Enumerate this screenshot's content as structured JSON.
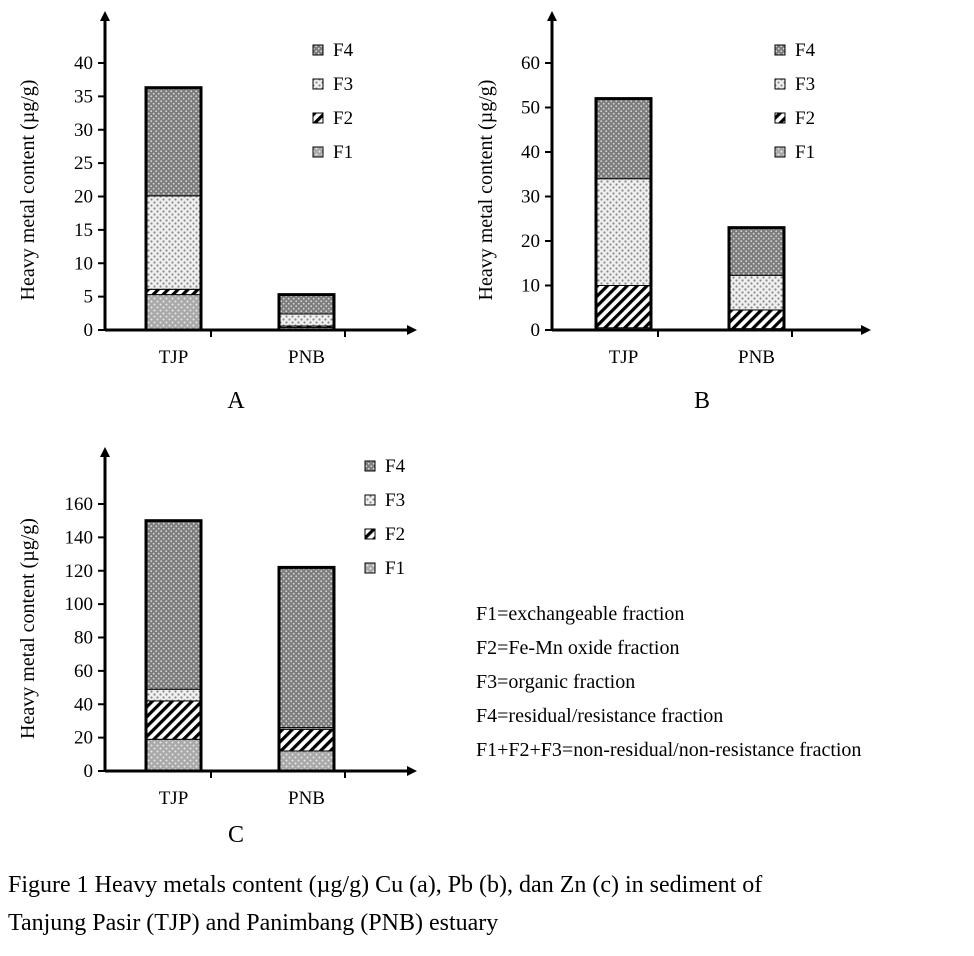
{
  "colors": {
    "F1": "#a9a9a9",
    "F2": "#ffffff",
    "F3": "#d9d9d9",
    "F4": "#8f8f8f",
    "axis": "#000000"
  },
  "chart_data": [
    {
      "type": "bar",
      "panel": "A",
      "ylabel": "Heavy metal content (µg/g)",
      "ylim": [
        0,
        40
      ],
      "yticks": [
        0,
        5,
        10,
        15,
        20,
        25,
        30,
        35,
        40
      ],
      "categories": [
        "TJP",
        "PNB"
      ],
      "legend": [
        "F4",
        "F3",
        "F2",
        "F1"
      ],
      "legend_position": "top-right",
      "series": [
        {
          "name": "F1",
          "values": [
            5.3,
            0.4
          ]
        },
        {
          "name": "F2",
          "values": [
            0.8,
            0.2
          ]
        },
        {
          "name": "F3",
          "values": [
            14.0,
            1.8
          ]
        },
        {
          "name": "F4",
          "values": [
            16.2,
            2.9
          ]
        }
      ]
    },
    {
      "type": "bar",
      "panel": "B",
      "ylabel": "Heavy metal content (µg/g)",
      "ylim": [
        0,
        60
      ],
      "yticks": [
        0,
        10,
        20,
        30,
        40,
        50,
        60
      ],
      "categories": [
        "TJP",
        "PNB"
      ],
      "legend": [
        "F4",
        "F3",
        "F2",
        "F1"
      ],
      "legend_position": "top-right",
      "series": [
        {
          "name": "F1",
          "values": [
            0.5,
            0.3
          ]
        },
        {
          "name": "F2",
          "values": [
            9.5,
            4.2
          ]
        },
        {
          "name": "F3",
          "values": [
            24.0,
            7.8
          ]
        },
        {
          "name": "F4",
          "values": [
            18.0,
            10.7
          ]
        }
      ]
    },
    {
      "type": "bar",
      "panel": "C",
      "ylabel": "Heavy metal content (µg/g)",
      "ylim": [
        0,
        160
      ],
      "yticks": [
        0,
        20,
        40,
        60,
        80,
        100,
        120,
        140,
        160
      ],
      "categories": [
        "TJP",
        "PNB"
      ],
      "legend": [
        "F4",
        "F3",
        "F2",
        "F1"
      ],
      "legend_position": "top-right",
      "series": [
        {
          "name": "F1",
          "values": [
            19,
            12
          ]
        },
        {
          "name": "F2",
          "values": [
            23,
            13
          ]
        },
        {
          "name": "F3",
          "values": [
            7,
            1
          ]
        },
        {
          "name": "F4",
          "values": [
            101,
            96
          ]
        }
      ]
    }
  ],
  "definitions": [
    "F1=exchangeable fraction",
    "F2=Fe-Mn oxide fraction",
    "F3=organic fraction",
    "F4=residual/resistance fraction",
    "F1+F2+F3=non-residual/non-resistance fraction"
  ],
  "caption": {
    "line1": "Figure 1 Heavy metals content (µg/g) Cu (a), Pb (b), dan Zn (c) in sediment of",
    "line2": "Tanjung Pasir (TJP) and Panimbang (PNB) estuary"
  }
}
